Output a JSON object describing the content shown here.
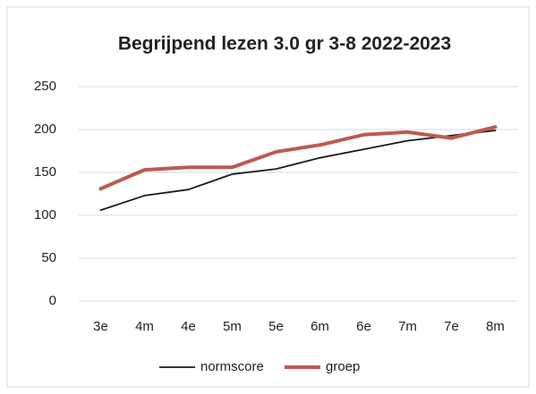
{
  "chart_data": {
    "type": "line",
    "title": "Begrijpend lezen 3.0 gr 3-8 2022-2023",
    "categories": [
      "3e",
      "4m",
      "4e",
      "5m",
      "5e",
      "6m",
      "6e",
      "7m",
      "7e",
      "8m"
    ],
    "series": [
      {
        "name": "normscore",
        "color": "#1a1a1a",
        "values": [
          106,
          123,
          130,
          148,
          154,
          167,
          177,
          187,
          193,
          199
        ]
      },
      {
        "name": "groep",
        "color": "#bb5a52",
        "values": [
          131,
          153,
          156,
          156,
          174,
          182,
          194,
          197,
          190,
          203
        ]
      }
    ],
    "ylim": [
      0,
      250
    ],
    "yticks": [
      0,
      50,
      100,
      150,
      200,
      250
    ],
    "grid": true,
    "legend": "bottom"
  }
}
